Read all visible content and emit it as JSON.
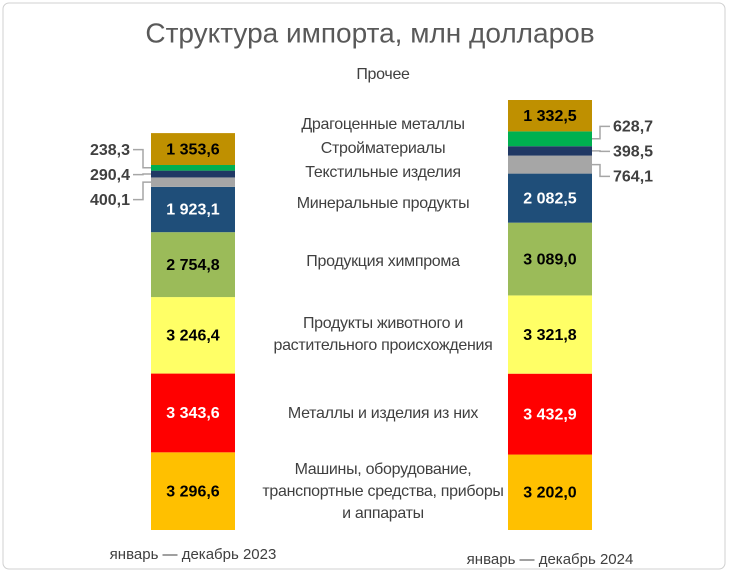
{
  "chart_data": {
    "type": "stacked-bar",
    "title": "Структура импорта, млн долларов",
    "categories": [
      "январь — декабрь 2023",
      "январь — декабрь 2024"
    ],
    "series": [
      {
        "name": "Машины, оборудование, транспортные средства, приборы и аппараты",
        "color": "#ffc000",
        "values": [
          3296.6,
          3202.0
        ],
        "value_labels": [
          "3 296,6",
          "3 202,0"
        ]
      },
      {
        "name": "Металлы и изделия из них",
        "color": "#ff0000",
        "values": [
          3343.6,
          3432.9
        ],
        "value_labels": [
          "3 343,6",
          "3 432,9"
        ]
      },
      {
        "name": "Продукты животного и растительного происхождения",
        "color": "#ffff66",
        "values": [
          3246.4,
          3321.8
        ],
        "value_labels": [
          "3 246,4",
          "3 321,8"
        ]
      },
      {
        "name": "Продукция химпрома",
        "color": "#9bbb59",
        "values": [
          2754.8,
          3089.0
        ],
        "value_labels": [
          "2 754,8",
          "3 089,0"
        ]
      },
      {
        "name": "Минеральные продукты",
        "color": "#1f4e79",
        "values": [
          1923.1,
          2082.5
        ],
        "value_labels": [
          "1 923,1",
          "2 082,5"
        ]
      },
      {
        "name": "Текстильные изделия",
        "color": "#a6a6a6",
        "values": [
          400.1,
          764.1
        ],
        "value_labels": [
          "400,1",
          "764,1"
        ]
      },
      {
        "name": "Стройматериалы",
        "color": "#203864",
        "values": [
          290.4,
          398.5
        ],
        "value_labels": [
          "290,4",
          "398,5"
        ]
      },
      {
        "name": "Драгоценные металлы",
        "color": "#00b050",
        "values": [
          238.3,
          628.7
        ],
        "value_labels": [
          "238,3",
          "628,7"
        ]
      },
      {
        "name": "Прочее",
        "color": "#bf9000",
        "values": [
          1353.6,
          1332.5
        ],
        "value_labels": [
          "1 353,6",
          "1 332,5"
        ]
      }
    ]
  }
}
